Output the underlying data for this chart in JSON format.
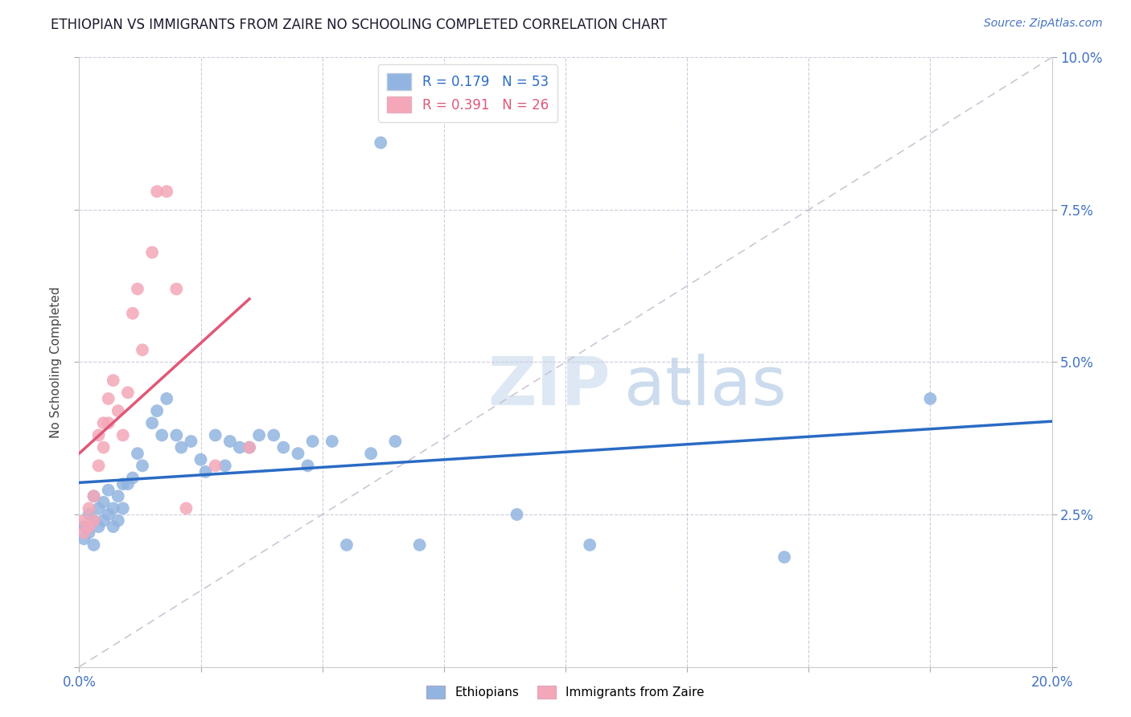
{
  "title": "ETHIOPIAN VS IMMIGRANTS FROM ZAIRE NO SCHOOLING COMPLETED CORRELATION CHART",
  "source": "Source: ZipAtlas.com",
  "ylabel": "No Schooling Completed",
  "xlim": [
    0.0,
    0.2
  ],
  "ylim": [
    0.0,
    0.1
  ],
  "R_ethiopian": 0.179,
  "N_ethiopian": 53,
  "R_zaire": 0.391,
  "N_zaire": 26,
  "color_ethiopian": "#92b4e0",
  "color_zaire": "#f4a7b8",
  "line_color_ethiopian": "#2a6bc4",
  "line_color_zaire": "#e05878",
  "line_color_dashed": "#c8c0d0",
  "ethiopians_x": [
    0.001,
    0.001,
    0.002,
    0.002,
    0.003,
    0.003,
    0.003,
    0.004,
    0.004,
    0.005,
    0.005,
    0.006,
    0.006,
    0.007,
    0.007,
    0.008,
    0.008,
    0.009,
    0.009,
    0.01,
    0.011,
    0.012,
    0.013,
    0.015,
    0.016,
    0.017,
    0.018,
    0.02,
    0.021,
    0.023,
    0.025,
    0.026,
    0.028,
    0.03,
    0.031,
    0.033,
    0.035,
    0.037,
    0.04,
    0.042,
    0.045,
    0.047,
    0.048,
    0.052,
    0.055,
    0.06,
    0.062,
    0.065,
    0.07,
    0.09,
    0.105,
    0.145,
    0.175
  ],
  "ethiopians_y": [
    0.023,
    0.021,
    0.025,
    0.022,
    0.028,
    0.024,
    0.02,
    0.026,
    0.023,
    0.027,
    0.024,
    0.025,
    0.029,
    0.026,
    0.023,
    0.028,
    0.024,
    0.03,
    0.026,
    0.03,
    0.031,
    0.035,
    0.033,
    0.04,
    0.042,
    0.038,
    0.044,
    0.038,
    0.036,
    0.037,
    0.034,
    0.032,
    0.038,
    0.033,
    0.037,
    0.036,
    0.036,
    0.038,
    0.038,
    0.036,
    0.035,
    0.033,
    0.037,
    0.037,
    0.02,
    0.035,
    0.086,
    0.037,
    0.02,
    0.025,
    0.02,
    0.018,
    0.044
  ],
  "zaire_x": [
    0.001,
    0.001,
    0.002,
    0.002,
    0.003,
    0.003,
    0.004,
    0.004,
    0.005,
    0.005,
    0.006,
    0.006,
    0.007,
    0.008,
    0.009,
    0.01,
    0.011,
    0.012,
    0.013,
    0.015,
    0.016,
    0.018,
    0.02,
    0.022,
    0.028,
    0.035
  ],
  "zaire_y": [
    0.024,
    0.022,
    0.026,
    0.023,
    0.028,
    0.024,
    0.038,
    0.033,
    0.04,
    0.036,
    0.044,
    0.04,
    0.047,
    0.042,
    0.038,
    0.045,
    0.058,
    0.062,
    0.052,
    0.068,
    0.078,
    0.078,
    0.062,
    0.026,
    0.033,
    0.036
  ]
}
